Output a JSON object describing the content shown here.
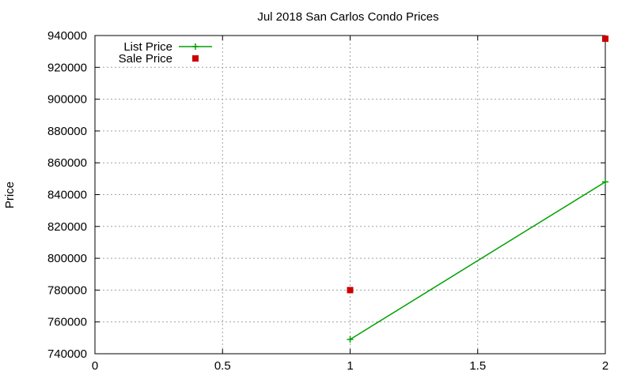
{
  "chart_data": {
    "type": "line",
    "title": "Jul 2018 San Carlos Condo Prices",
    "xlabel": "",
    "ylabel": "Price",
    "xlim": [
      0,
      2
    ],
    "ylim": [
      740000,
      940000
    ],
    "x_ticks": [
      0,
      0.5,
      1,
      1.5,
      2
    ],
    "x_tick_labels": [
      "0",
      "0.5",
      "1",
      "1.5",
      "2"
    ],
    "y_ticks": [
      740000,
      760000,
      780000,
      800000,
      820000,
      840000,
      860000,
      880000,
      900000,
      920000,
      940000
    ],
    "y_tick_labels": [
      "740000",
      "760000",
      "780000",
      "800000",
      "820000",
      "840000",
      "860000",
      "880000",
      "900000",
      "920000",
      "940000"
    ],
    "grid": true,
    "legend_position": "top-left",
    "series": [
      {
        "name": "List Price",
        "style": "lines+crosses",
        "color": "#00a000",
        "points": [
          {
            "x": 1,
            "y": 749000
          },
          {
            "x": 2,
            "y": 848000
          }
        ]
      },
      {
        "name": "Sale Price",
        "style": "squares",
        "color": "#cc0000",
        "points": [
          {
            "x": 1,
            "y": 780000
          },
          {
            "x": 2,
            "y": 938000
          }
        ]
      }
    ]
  }
}
